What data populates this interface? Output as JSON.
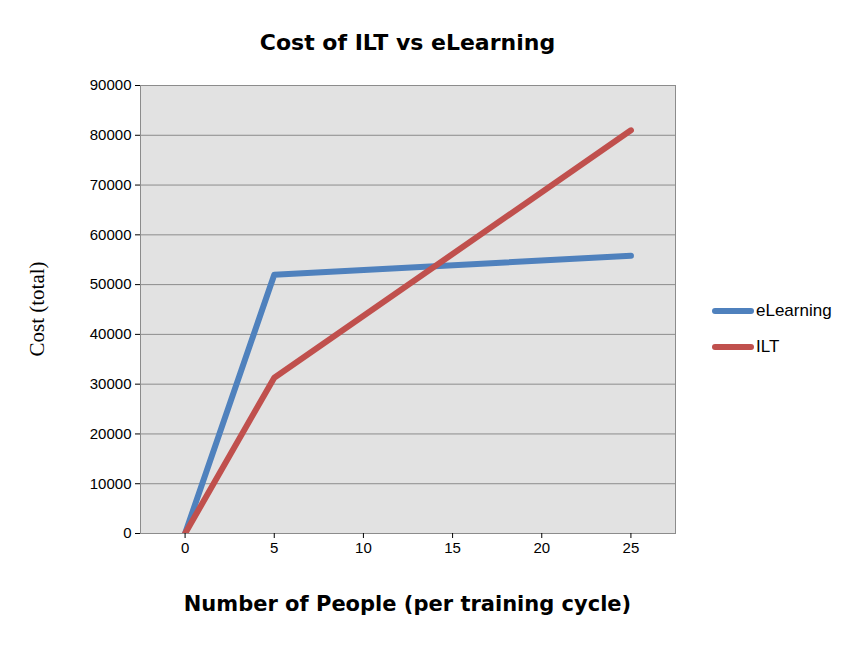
{
  "chart_data": {
    "type": "line",
    "title": "Cost of ILT vs eLearning",
    "x_label": "Number of People (per training cycle)",
    "y_label": "Cost (total)",
    "x": [
      0,
      5,
      25
    ],
    "series": [
      {
        "name": "eLearning",
        "color": "#4f81bd",
        "values": [
          0,
          52000,
          55800
        ]
      },
      {
        "name": "ILT",
        "color": "#c0504d",
        "values": [
          0,
          31300,
          81000
        ]
      }
    ],
    "xlim": [
      -2.5,
      27.5
    ],
    "xticks": [
      0,
      5,
      10,
      15,
      20,
      25
    ],
    "ylim": [
      0,
      90000
    ],
    "yticks": [
      0,
      10000,
      20000,
      30000,
      40000,
      50000,
      60000,
      70000,
      80000,
      90000
    ],
    "grid": true,
    "legend": "right"
  }
}
